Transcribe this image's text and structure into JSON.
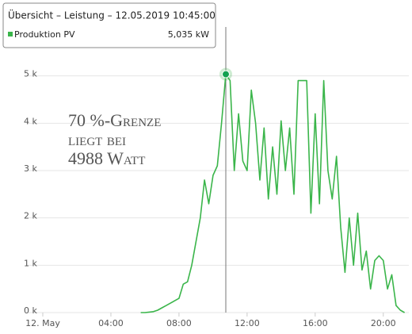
{
  "chart_data": {
    "type": "line",
    "tooltip": {
      "title": "Übersicht – Leistung – 12.05.2019 10:45:00",
      "value_label": "5,035 kW"
    },
    "annotation": [
      "70 %-Grenze",
      "liegt bei",
      "4988 Watt"
    ],
    "annotation_color": "#f08a24",
    "x": [
      5.75,
      6,
      6.25,
      6.5,
      6.75,
      7,
      7.25,
      7.5,
      7.75,
      8,
      8.25,
      8.5,
      8.75,
      9,
      9.25,
      9.5,
      9.75,
      10,
      10.25,
      10.5,
      10.75,
      11,
      11.25,
      11.5,
      11.75,
      12,
      12.25,
      12.5,
      12.75,
      13,
      13.25,
      13.5,
      13.75,
      14,
      14.25,
      14.5,
      14.75,
      15,
      15.25,
      15.5,
      15.75,
      16,
      16.25,
      16.5,
      16.75,
      17,
      17.25,
      17.5,
      17.75,
      18,
      18.25,
      18.5,
      18.75,
      19,
      19.25,
      19.5,
      19.75,
      20,
      20.25,
      20.5,
      20.75,
      21,
      21.25
    ],
    "series": [
      {
        "name": "Produktion PV",
        "color": "#3ab54a",
        "values": [
          0,
          0,
          10,
          20,
          50,
          100,
          150,
          200,
          250,
          300,
          600,
          650,
          1000,
          1500,
          2000,
          2800,
          2300,
          2900,
          3100,
          4000,
          5035,
          4900,
          3000,
          4200,
          3200,
          3000,
          4700,
          4000,
          2800,
          3900,
          2400,
          3500,
          2500,
          4050,
          3000,
          3900,
          2500,
          4900,
          4900,
          4900,
          2100,
          4200,
          2300,
          4900,
          3000,
          2400,
          3300,
          1800,
          850,
          2000,
          1000,
          2100,
          900,
          1300,
          500,
          1100,
          1200,
          1100,
          500,
          800,
          150,
          50,
          0
        ]
      }
    ],
    "xlim": [
      0,
      21.5
    ],
    "xticks": [
      {
        "value": 0,
        "label": "12. May"
      },
      {
        "value": 4,
        "label": "04:00"
      },
      {
        "value": 8,
        "label": "08:00"
      },
      {
        "value": 12,
        "label": "12:00"
      },
      {
        "value": 16,
        "label": "16:00"
      },
      {
        "value": 20,
        "label": "20:00"
      }
    ],
    "ylim": [
      0,
      6000
    ],
    "yticks": [
      {
        "value": 0,
        "label": "0 k"
      },
      {
        "value": 1000,
        "label": "1 k"
      },
      {
        "value": 2000,
        "label": "2 k"
      },
      {
        "value": 3000,
        "label": "3 k"
      },
      {
        "value": 4000,
        "label": "4 k"
      },
      {
        "value": 5000,
        "label": "5 k"
      }
    ],
    "grid": true
  }
}
